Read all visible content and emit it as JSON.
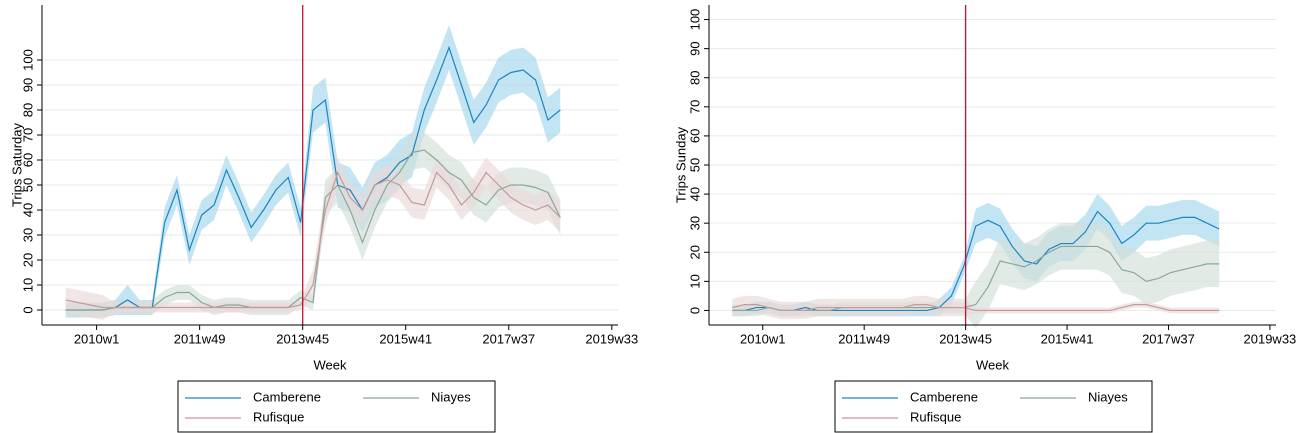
{
  "chart_data": [
    {
      "type": "line",
      "ylabel": "Trips Saturday",
      "xlabel": "Week",
      "x": [
        2570,
        2582,
        2594,
        2606,
        2618,
        2630,
        2642,
        2654,
        2666,
        2678,
        2690,
        2702,
        2714,
        2726,
        2738,
        2750,
        2762,
        2774,
        2786,
        2798,
        2810,
        2822,
        2834,
        2846,
        2858,
        2870,
        2882,
        2894,
        2906,
        2918,
        2930,
        2942,
        2954,
        2966,
        2978,
        2990,
        3002,
        3014,
        3026,
        3038,
        3050
      ],
      "xlim": [
        2547,
        3106
      ],
      "xticks": [
        {
          "value": 2600,
          "label": "2010w1"
        },
        {
          "value": 2700,
          "label": "2011w49"
        },
        {
          "value": 2800,
          "label": "2013w45"
        },
        {
          "value": 2900,
          "label": "2015w41"
        },
        {
          "value": 3000,
          "label": "2017w37"
        },
        {
          "value": 3100,
          "label": "2019w33"
        }
      ],
      "ylim": [
        -6,
        122
      ],
      "yticks": [
        0,
        10,
        20,
        30,
        40,
        50,
        60,
        70,
        80,
        90,
        100
      ],
      "grid": true,
      "vline": {
        "value": 2800,
        "color": "#c8102e"
      },
      "legend": "bottom",
      "series": [
        {
          "name": "Camberene",
          "color": "#1a86c2",
          "band_color": "#a3d6ec",
          "values": [
            0,
            0,
            0,
            0,
            1,
            4,
            1,
            1,
            35,
            48,
            24,
            38,
            42,
            56,
            45,
            33,
            40,
            48,
            53,
            35,
            80,
            84,
            50,
            48,
            40,
            50,
            53,
            59,
            62,
            80,
            92,
            105,
            90,
            75,
            82,
            92,
            95,
            96,
            92,
            76,
            80
          ],
          "lower": [
            -3,
            -3,
            -3,
            -3,
            -2,
            -2,
            -2,
            -2,
            29,
            42,
            18,
            32,
            36,
            50,
            39,
            27,
            34,
            42,
            47,
            29,
            71,
            75,
            41,
            39,
            31,
            41,
            44,
            50,
            53,
            71,
            83,
            96,
            81,
            66,
            73,
            83,
            86,
            87,
            83,
            67,
            71
          ],
          "upper": [
            3,
            3,
            3,
            3,
            4,
            10,
            4,
            4,
            41,
            54,
            30,
            44,
            48,
            62,
            51,
            39,
            46,
            54,
            59,
            41,
            89,
            93,
            59,
            57,
            49,
            59,
            62,
            68,
            71,
            89,
            101,
            114,
            99,
            84,
            91,
            101,
            104,
            105,
            101,
            85,
            89
          ]
        },
        {
          "name": "Niayes",
          "color": "#8aa89a",
          "band_color": "#d3dfd8",
          "values": [
            0,
            0,
            0,
            0,
            1,
            1,
            1,
            1,
            5,
            7,
            7,
            3,
            1,
            2,
            2,
            1,
            1,
            1,
            1,
            5,
            3,
            45,
            50,
            40,
            27,
            40,
            50,
            55,
            63,
            64,
            60,
            55,
            52,
            45,
            42,
            48,
            50,
            50,
            49,
            47,
            37
          ],
          "lower": [
            -3,
            -3,
            -3,
            -3,
            -2,
            -2,
            -2,
            -2,
            2,
            4,
            4,
            0,
            -2,
            -1,
            -1,
            -2,
            -2,
            -2,
            -2,
            2,
            0,
            38,
            43,
            33,
            20,
            33,
            43,
            48,
            56,
            57,
            53,
            48,
            45,
            38,
            35,
            41,
            43,
            43,
            42,
            40,
            30
          ],
          "upper": [
            3,
            3,
            3,
            3,
            4,
            4,
            4,
            4,
            8,
            10,
            10,
            6,
            4,
            5,
            5,
            4,
            4,
            4,
            4,
            8,
            6,
            52,
            57,
            47,
            34,
            47,
            57,
            62,
            70,
            71,
            67,
            62,
            59,
            52,
            49,
            55,
            57,
            57,
            56,
            54,
            44
          ]
        },
        {
          "name": "Rufisque",
          "color": "#c49a9a",
          "band_color": "#ead9d9",
          "values": [
            4,
            3,
            2,
            1,
            1,
            1,
            1,
            1,
            1,
            1,
            1,
            1,
            1,
            1,
            1,
            1,
            1,
            1,
            1,
            2,
            10,
            40,
            55,
            45,
            40,
            50,
            52,
            50,
            43,
            42,
            55,
            50,
            42,
            47,
            55,
            50,
            45,
            42,
            40,
            42,
            37
          ],
          "lower": [
            -1,
            -2,
            -3,
            -4,
            -1,
            -1,
            -1,
            -1,
            -1,
            -1,
            -1,
            -1,
            -1,
            -1,
            -1,
            -1,
            -1,
            -1,
            -1,
            0,
            4,
            34,
            49,
            39,
            34,
            44,
            46,
            44,
            37,
            36,
            49,
            44,
            36,
            41,
            49,
            44,
            39,
            36,
            34,
            36,
            31
          ],
          "upper": [
            9,
            8,
            7,
            6,
            3,
            3,
            3,
            3,
            3,
            3,
            3,
            3,
            3,
            3,
            3,
            3,
            3,
            3,
            3,
            4,
            16,
            46,
            61,
            51,
            46,
            56,
            58,
            56,
            49,
            48,
            61,
            56,
            48,
            53,
            61,
            56,
            51,
            48,
            46,
            48,
            43
          ]
        }
      ]
    },
    {
      "type": "line",
      "ylabel": "Trips Sunday",
      "xlabel": "Week",
      "x": [
        2570,
        2582,
        2594,
        2606,
        2618,
        2630,
        2642,
        2654,
        2666,
        2678,
        2690,
        2702,
        2714,
        2726,
        2738,
        2750,
        2762,
        2774,
        2786,
        2798,
        2810,
        2822,
        2834,
        2846,
        2858,
        2870,
        2882,
        2894,
        2906,
        2918,
        2930,
        2942,
        2954,
        2966,
        2978,
        2990,
        3002,
        3014,
        3026,
        3038,
        3050
      ],
      "xlim": [
        2547,
        3106
      ],
      "xticks": [
        {
          "value": 2600,
          "label": "2010w1"
        },
        {
          "value": 2700,
          "label": "2011w49"
        },
        {
          "value": 2800,
          "label": "2013w45"
        },
        {
          "value": 2900,
          "label": "2015w41"
        },
        {
          "value": 3000,
          "label": "2017w37"
        },
        {
          "value": 3100,
          "label": "2019w33"
        }
      ],
      "ylim": [
        -5,
        105
      ],
      "yticks": [
        0,
        10,
        20,
        30,
        40,
        50,
        60,
        70,
        80,
        90,
        100
      ],
      "grid": true,
      "vline": {
        "value": 2800,
        "color": "#c8102e"
      },
      "legend": "bottom",
      "series": [
        {
          "name": "Camberene",
          "color": "#1a86c2",
          "band_color": "#a3d6ec",
          "values": [
            0,
            0,
            1,
            1,
            0,
            0,
            1,
            0,
            0,
            0,
            0,
            0,
            0,
            0,
            0,
            0,
            0,
            1,
            5,
            15,
            29,
            31,
            29,
            22,
            17,
            16,
            21,
            23,
            23,
            27,
            34,
            30,
            23,
            26,
            30,
            30,
            31,
            32,
            32,
            30,
            28
          ],
          "lower": [
            -2,
            -2,
            -1,
            -1,
            -2,
            -2,
            -1,
            -2,
            -2,
            -2,
            -2,
            -2,
            -2,
            -2,
            -2,
            -2,
            -2,
            -2,
            2,
            12,
            23,
            25,
            23,
            16,
            11,
            10,
            15,
            17,
            17,
            21,
            28,
            24,
            17,
            20,
            24,
            24,
            25,
            26,
            26,
            24,
            22
          ],
          "upper": [
            2,
            2,
            3,
            3,
            2,
            2,
            3,
            2,
            2,
            2,
            2,
            2,
            2,
            2,
            2,
            2,
            2,
            4,
            8,
            18,
            35,
            37,
            35,
            28,
            23,
            22,
            27,
            29,
            29,
            33,
            40,
            36,
            29,
            32,
            36,
            36,
            37,
            38,
            38,
            36,
            34
          ]
        },
        {
          "name": "Niayes",
          "color": "#8aa89a",
          "band_color": "#d3dfd8",
          "values": [
            0,
            0,
            0,
            1,
            0,
            0,
            0,
            0,
            0,
            1,
            1,
            1,
            1,
            1,
            1,
            1,
            1,
            1,
            1,
            1,
            2,
            8,
            17,
            16,
            15,
            17,
            20,
            22,
            22,
            22,
            22,
            20,
            14,
            13,
            10,
            11,
            13,
            14,
            15,
            16,
            16
          ],
          "lower": [
            -2,
            -2,
            -2,
            -1,
            -2,
            -2,
            -2,
            -2,
            -2,
            -1,
            -1,
            -1,
            -1,
            -1,
            -1,
            -1,
            -1,
            -1,
            -1,
            -1,
            -6,
            0,
            9,
            8,
            7,
            9,
            12,
            14,
            14,
            14,
            14,
            12,
            6,
            5,
            2,
            3,
            5,
            6,
            7,
            8,
            8
          ],
          "upper": [
            2,
            2,
            2,
            3,
            2,
            2,
            2,
            2,
            2,
            3,
            3,
            3,
            3,
            3,
            3,
            3,
            3,
            3,
            3,
            3,
            10,
            16,
            25,
            24,
            23,
            25,
            28,
            30,
            30,
            30,
            30,
            28,
            22,
            21,
            18,
            19,
            21,
            22,
            23,
            24,
            24
          ]
        },
        {
          "name": "Rufisque",
          "color": "#c49a9a",
          "band_color": "#ead9d9",
          "values": [
            1,
            2,
            2,
            1,
            0,
            0,
            0,
            1,
            1,
            1,
            1,
            1,
            1,
            1,
            1,
            2,
            2,
            1,
            1,
            1,
            0,
            0,
            0,
            0,
            0,
            0,
            0,
            0,
            0,
            0,
            0,
            0,
            1,
            2,
            2,
            1,
            0,
            0,
            0,
            0,
            0
          ],
          "lower": [
            -2,
            -1,
            -1,
            -2,
            -3,
            -3,
            -3,
            -2,
            -2,
            -2,
            -2,
            -2,
            -2,
            -2,
            -2,
            -1,
            -1,
            -2,
            -2,
            -2,
            -1,
            -1,
            -1,
            -1,
            -1,
            -1,
            -1,
            -1,
            -1,
            -1,
            -1,
            -1,
            0,
            1,
            1,
            0,
            -1,
            -1,
            -1,
            -1,
            -1
          ],
          "upper": [
            4,
            5,
            5,
            4,
            3,
            3,
            3,
            4,
            4,
            4,
            4,
            4,
            4,
            4,
            4,
            5,
            5,
            4,
            4,
            4,
            1,
            1,
            1,
            1,
            1,
            1,
            1,
            1,
            1,
            1,
            1,
            1,
            2,
            3,
            3,
            2,
            1,
            1,
            1,
            1,
            1
          ]
        }
      ]
    }
  ]
}
